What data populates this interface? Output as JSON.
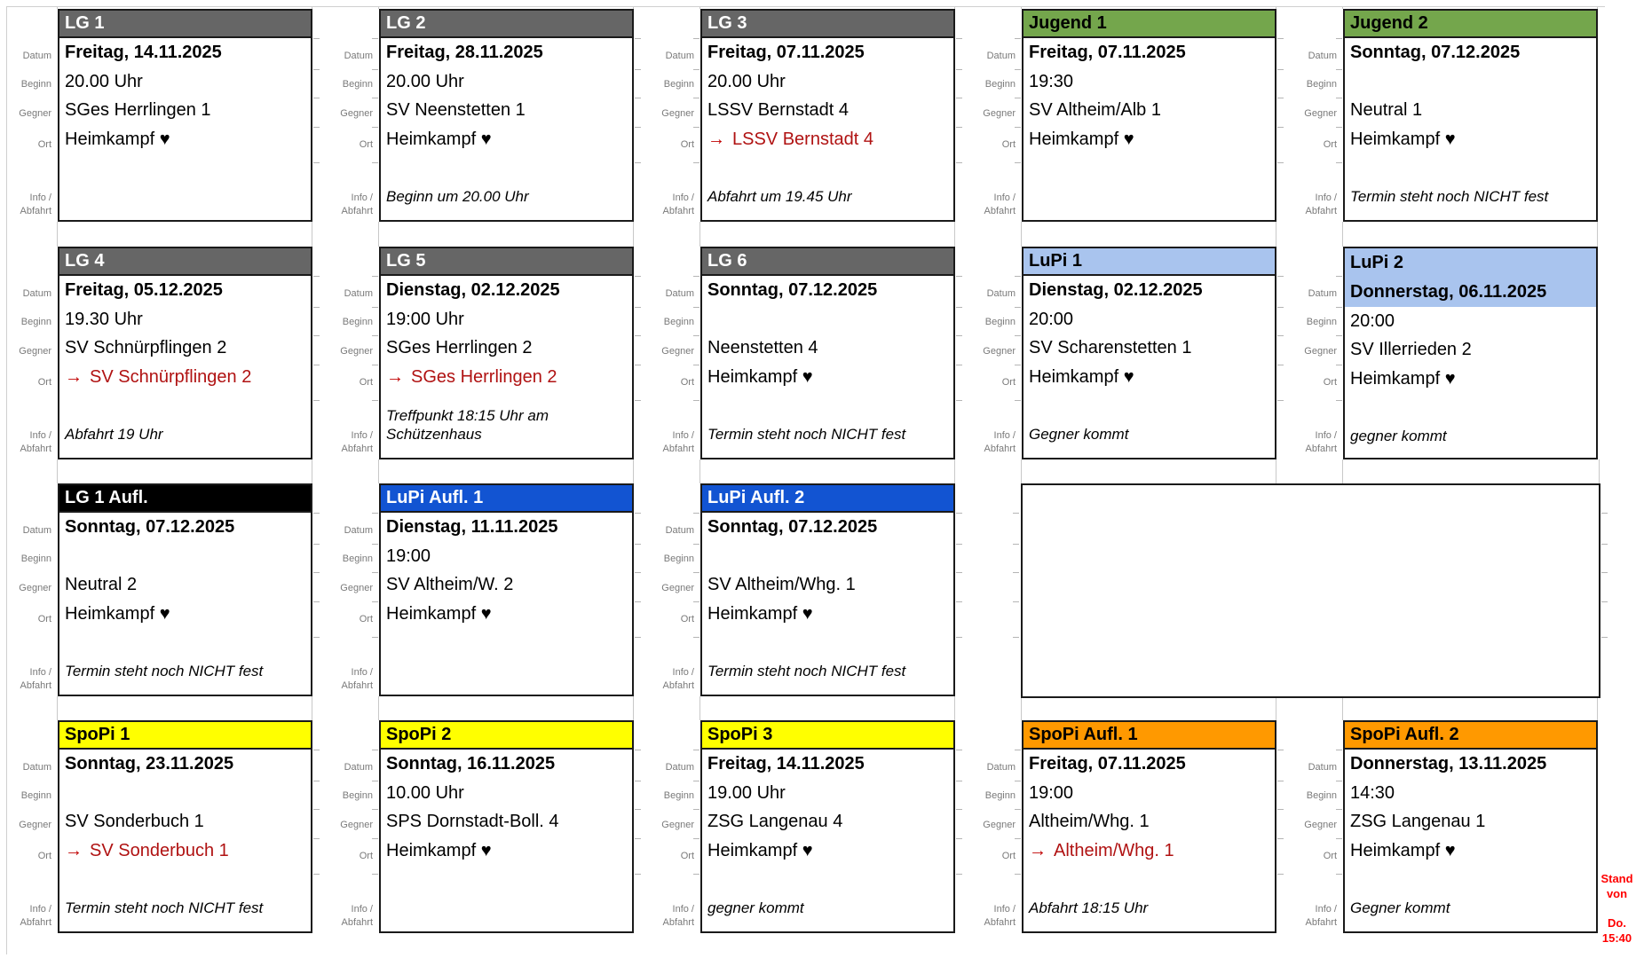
{
  "labels": {
    "datum": "Datum",
    "beginn": "Beginn",
    "gegner": "Gegner",
    "ort": "Ort",
    "info_line1": "Info /",
    "info_line2": "Abfahrt"
  },
  "stand": {
    "line1": "Stand",
    "line2": "von",
    "line3": "Do.",
    "line4": "15:40"
  },
  "colors": {
    "lg_gray": "#666666",
    "jugend_green": "#74a64c",
    "lupi_lightblue": "#a9c4ee",
    "lg_aufl_black": "#000000",
    "lupi_aufl_blue": "#1254d2",
    "spopi_yellow": "#ffff00",
    "spopi_aufl_orange": "#ff9900",
    "away_red": "#b01212",
    "stand_red": "#ff0000"
  },
  "cards": [
    {
      "title": "LG 1",
      "header_bg": "#666666",
      "header_fg": "#ffffff",
      "datum": "Freitag, 14.11.2025",
      "beginn": "20.00 Uhr",
      "gegner": "SGes Herrlingen 1",
      "ort": {
        "text": "Heimkampf ♥",
        "away": false
      },
      "info": ""
    },
    {
      "title": "LG 2",
      "header_bg": "#666666",
      "header_fg": "#ffffff",
      "datum": "Freitag, 28.11.2025",
      "beginn": "20.00 Uhr",
      "gegner": "SV Neenstetten 1",
      "ort": {
        "text": "Heimkampf ♥",
        "away": false
      },
      "info": "Beginn um 20.00 Uhr"
    },
    {
      "title": "LG 3",
      "header_bg": "#666666",
      "header_fg": "#ffffff",
      "datum": "Freitag, 07.11.2025",
      "beginn": "20.00 Uhr",
      "gegner": "LSSV Bernstadt 4",
      "ort": {
        "arrow": "→",
        "text": "LSSV Bernstadt 4",
        "away": true
      },
      "info": "Abfahrt um 19.45 Uhr"
    },
    {
      "title": "Jugend 1",
      "header_bg": "#74a64c",
      "header_fg": "#000000",
      "datum": "Freitag, 07.11.2025",
      "beginn": "19:30",
      "gegner": "SV Altheim/Alb 1",
      "ort": {
        "text": "Heimkampf ♥",
        "away": false
      },
      "info": ""
    },
    {
      "title": "Jugend 2",
      "header_bg": "#74a64c",
      "header_fg": "#000000",
      "datum": "Sonntag, 07.12.2025",
      "beginn": "",
      "gegner": "Neutral 1",
      "ort": {
        "text": "Heimkampf ♥",
        "away": false
      },
      "info": "Termin steht noch NICHT fest"
    },
    {
      "title": "LG 4",
      "header_bg": "#666666",
      "header_fg": "#ffffff",
      "datum": "Freitag, 05.12.2025",
      "beginn": "19.30 Uhr",
      "gegner": "SV Schnürpflingen 2",
      "ort": {
        "arrow": "→",
        "text": "SV Schnürpflingen 2",
        "away": true
      },
      "info": "Abfahrt 19 Uhr"
    },
    {
      "title": "LG 5",
      "header_bg": "#666666",
      "header_fg": "#ffffff",
      "datum": "Dienstag, 02.12.2025",
      "beginn": "19:00 Uhr",
      "gegner": "SGes Herrlingen 2",
      "ort": {
        "arrow": "→",
        "text": "SGes Herrlingen 2",
        "away": true
      },
      "info": "Treffpunkt 18:15 Uhr am Schützenhaus"
    },
    {
      "title": "LG 6",
      "header_bg": "#666666",
      "header_fg": "#ffffff",
      "datum": "Sonntag, 07.12.2025",
      "beginn": "",
      "gegner": "Neenstetten 4",
      "ort": {
        "text": "Heimkampf ♥",
        "away": false
      },
      "info": "Termin steht noch NICHT fest"
    },
    {
      "title": "LuPi 1",
      "header_bg": "#a9c4ee",
      "header_fg": "#000000",
      "datum": "Dienstag, 02.12.2025",
      "beginn": "20:00",
      "gegner": "SV Scharenstetten 1",
      "ort": {
        "text": "Heimkampf ♥",
        "away": false
      },
      "info": "Gegner kommt"
    },
    {
      "title": "LuPi 2",
      "header_bg": "#a9c4ee",
      "header_fg": "#000000",
      "datum": "Donnerstag, 06.11.2025",
      "beginn": "20:00",
      "gegner": "SV Illerrieden 2",
      "ort": {
        "text": "Heimkampf ♥",
        "away": false
      },
      "info": "gegner kommt",
      "datum_highlight": true
    },
    {
      "title": "LG 1 Aufl.",
      "header_bg": "#000000",
      "header_fg": "#ffffff",
      "datum": "Sonntag, 07.12.2025",
      "beginn": "",
      "gegner": "Neutral 2",
      "ort": {
        "text": "Heimkampf ♥",
        "away": false
      },
      "info": "Termin steht noch NICHT fest"
    },
    {
      "title": "LuPi Aufl. 1",
      "header_bg": "#1254d2",
      "header_fg": "#ffffff",
      "datum": "Dienstag, 11.11.2025",
      "beginn": "19:00",
      "gegner": "SV Altheim/W. 2",
      "ort": {
        "text": "Heimkampf ♥",
        "away": false
      },
      "info": ""
    },
    {
      "title": "LuPi Aufl. 2",
      "header_bg": "#1254d2",
      "header_fg": "#ffffff",
      "datum": "Sonntag, 07.12.2025",
      "beginn": "",
      "gegner": "SV Altheim/Whg. 1",
      "ort": {
        "text": "Heimkampf ♥",
        "away": false
      },
      "info": "Termin steht noch NICHT fest"
    },
    {
      "title": "SpoPi 1",
      "header_bg": "#ffff00",
      "header_fg": "#000000",
      "datum": "Sonntag, 23.11.2025",
      "beginn": "",
      "gegner": "SV Sonderbuch 1",
      "ort": {
        "arrow": "→",
        "text": "SV Sonderbuch 1",
        "away": true
      },
      "info": "Termin steht noch NICHT fest"
    },
    {
      "title": "SpoPi 2",
      "header_bg": "#ffff00",
      "header_fg": "#000000",
      "datum": "Sonntag, 16.11.2025",
      "beginn": "10.00 Uhr",
      "gegner": "SPS Dornstadt-Boll. 4",
      "ort": {
        "text": "Heimkampf ♥",
        "away": false
      },
      "info": ""
    },
    {
      "title": "SpoPi 3",
      "header_bg": "#ffff00",
      "header_fg": "#000000",
      "datum": "Freitag, 14.11.2025",
      "beginn": "19.00 Uhr",
      "gegner": "ZSG Langenau 4",
      "ort": {
        "text": "Heimkampf ♥",
        "away": false
      },
      "info": "gegner kommt"
    },
    {
      "title": "SpoPi Aufl. 1",
      "header_bg": "#ff9900",
      "header_fg": "#000000",
      "datum": "Freitag, 07.11.2025",
      "beginn": "19:00",
      "gegner": "Altheim/Whg. 1",
      "ort": {
        "arrow": "→",
        "text": "Altheim/Whg. 1",
        "away": true
      },
      "info": "Abfahrt 18:15 Uhr"
    },
    {
      "title": "SpoPi Aufl. 2",
      "header_bg": "#ff9900",
      "header_fg": "#000000",
      "datum": "Donnerstag, 13.11.2025",
      "beginn": "14:30",
      "gegner": "ZSG Langenau 1",
      "ort": {
        "text": "Heimkampf ♥",
        "away": false
      },
      "info": "Gegner kommt"
    }
  ]
}
